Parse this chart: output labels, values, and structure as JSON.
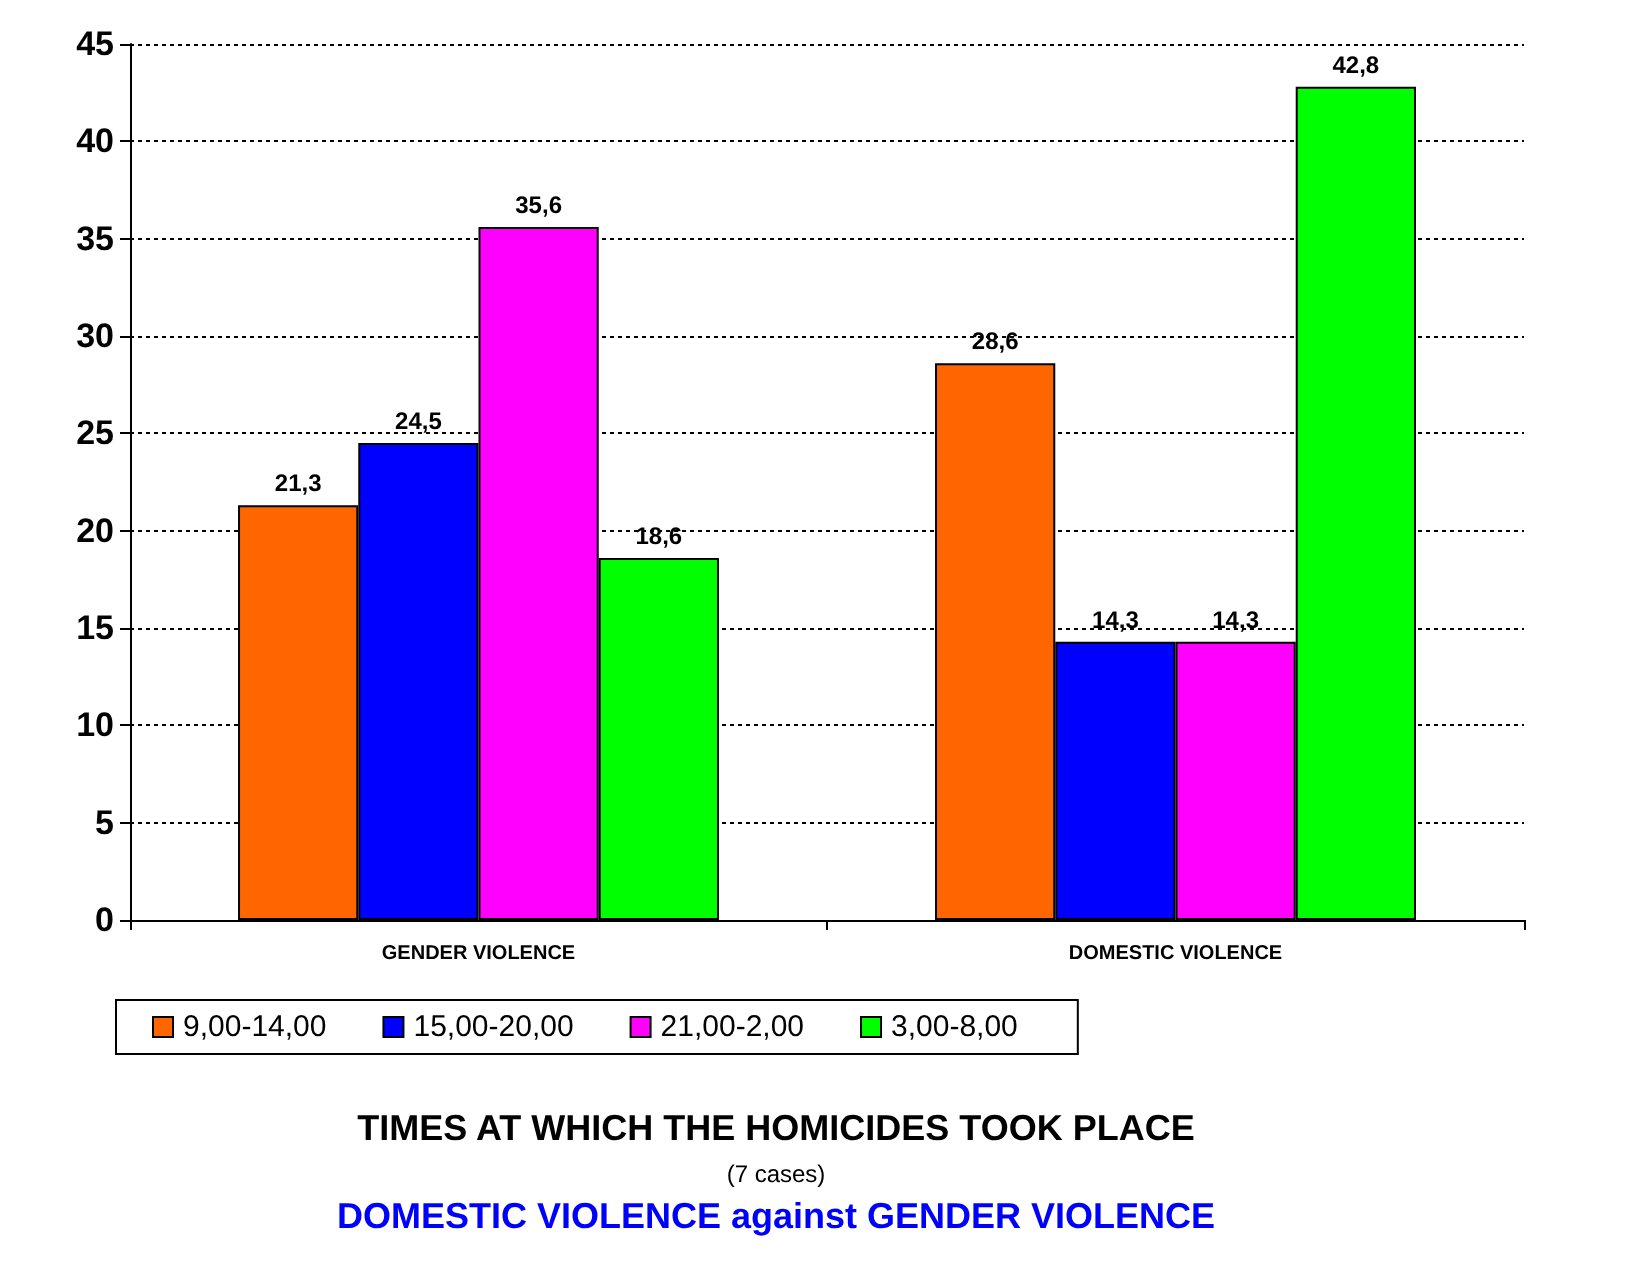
{
  "chart_data": {
    "type": "bar",
    "title": "TIMES AT WHICH THE HOMICIDES TOOK PLACE",
    "subtitle": "(7 cases)",
    "annotations": [
      "DOMESTIC VIOLENCE against GENDER VIOLENCE"
    ],
    "categories": [
      "GENDER VIOLENCE",
      "DOMESTIC VIOLENCE"
    ],
    "series": [
      {
        "name": "9,00-14,00",
        "color": "#ff6600",
        "values": [
          21.3,
          28.6
        ],
        "value_labels": [
          "21,3",
          "28,6"
        ]
      },
      {
        "name": "15,00-20,00",
        "color": "#0000ff",
        "values": [
          24.5,
          14.3
        ],
        "value_labels": [
          "24,5",
          "14,3"
        ]
      },
      {
        "name": "21,00-2,00",
        "color": "#ff00ff",
        "values": [
          35.6,
          14.3
        ],
        "value_labels": [
          "35,6",
          "14,3"
        ]
      },
      {
        "name": "3,00-8,00",
        "color": "#00ff00",
        "values": [
          18.6,
          42.8
        ],
        "value_labels": [
          "18,6",
          "42,8"
        ]
      }
    ],
    "ylim": [
      0,
      45
    ],
    "yticks": [
      0,
      5,
      10,
      15,
      20,
      25,
      30,
      35,
      40,
      45
    ],
    "grid": "y",
    "legend": "bottom"
  }
}
